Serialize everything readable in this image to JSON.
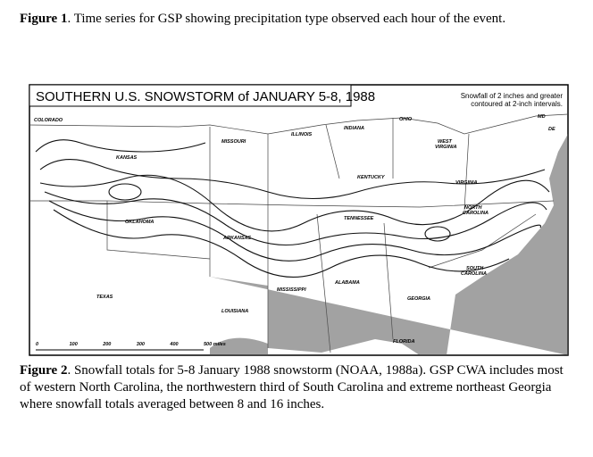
{
  "figure1": {
    "label": "Figure 1",
    "text": ".  Time series for GSP showing precipitation type observed each hour of the event."
  },
  "map": {
    "title": "SOUTHERN U.S. SNOWSTORM of JANUARY 5-8, 1988",
    "note": [
      "Snowfall of 2 inches and greater",
      "contoured at 2-inch intervals."
    ],
    "states": {
      "colorado": "COLORADO",
      "kansas": "KANSAS",
      "missouri": "MISSOURI",
      "illinois": "ILLINOIS",
      "indiana": "INDIANA",
      "ohio": "OHIO",
      "west_virginia": [
        "WEST",
        "VIRGINIA"
      ],
      "kentucky": "KENTUCKY",
      "virginia": "VIRGINIA",
      "md": "MD",
      "de": "DE",
      "north_carolina": [
        "NORTH",
        "CAROLINA"
      ],
      "tennessee": "TENNESSEE",
      "oklahoma": "OKLAHOMA",
      "arkansas": "ARKANSAS",
      "south_carolina": [
        "SOUTH",
        "CAROLINA"
      ],
      "mississippi": "MISSISSIPPI",
      "alabama": "ALABAMA",
      "georgia": "GEORGIA",
      "texas": "TEXAS",
      "louisiana": "LOUISIANA",
      "florida": "FLORIDA"
    },
    "scale": [
      "0",
      "100",
      "200",
      "300",
      "400",
      "500 miles"
    ]
  },
  "figure2": {
    "label": "Figure 2",
    "text": ".  Snowfall totals for 5-8 January 1988 snowstorm (NOAA, 1988a). GSP CWA includes most of western North Carolina, the northwestern third of South Carolina and extreme northeast Georgia where snowfall totals averaged between 8 and 16 inches."
  }
}
